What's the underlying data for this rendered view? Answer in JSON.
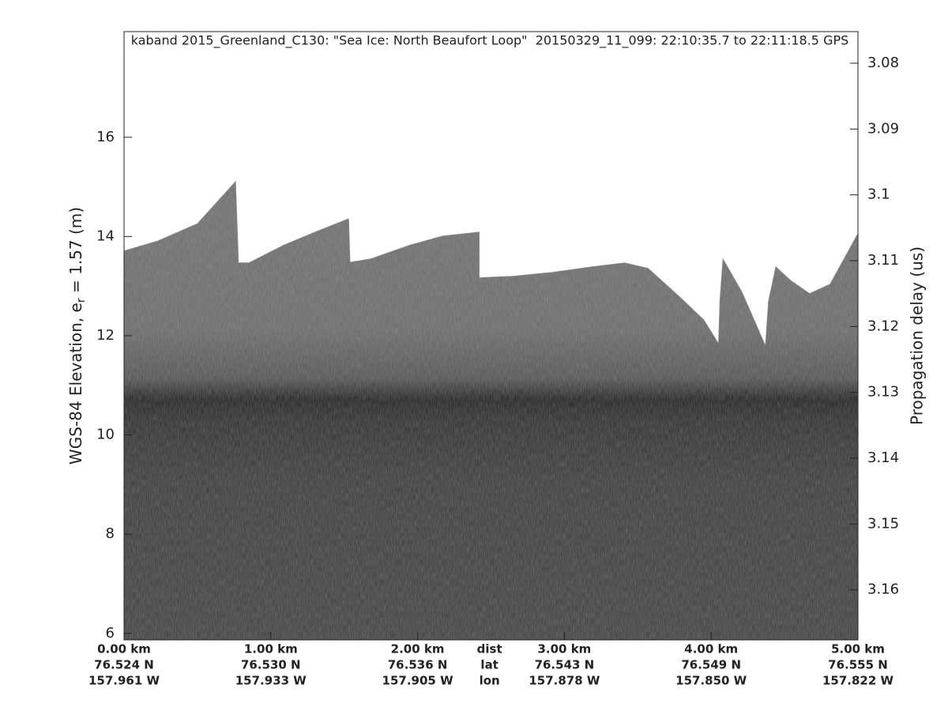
{
  "chart_data": {
    "type": "echogram",
    "title": "kaband 2015_Greenland_C130: \"Sea Ice: North Beaufort Loop\"  20150329_11_099: 22:10:35.7 to 22:11:18.5 GPS",
    "ylabel": {
      "text": "WGS-84 Elevation, e",
      "subscript": "r",
      "rest": " = 1.57 (m)"
    },
    "y2label": "Propagation delay (us)",
    "xlim": [
      0,
      5.0
    ],
    "xticks": [
      {
        "value": 0,
        "label": "0.00 km"
      },
      {
        "value": 1,
        "label": "1.00 km"
      },
      {
        "value": 2,
        "label": "2.00 km"
      },
      {
        "value": 3,
        "label": "3.00 km"
      },
      {
        "value": 4,
        "label": "4.00 km"
      },
      {
        "value": 5,
        "label": "5.00 km"
      }
    ],
    "xtick_lat": [
      "76.524 N",
      "76.530 N",
      "76.536 N",
      "76.543 N",
      "76.549 N",
      "76.555 N"
    ],
    "xtick_lon": [
      "157.961 W",
      "157.933 W",
      "157.905 W",
      "157.878 W",
      "157.850 W",
      "157.822 W"
    ],
    "row_labels": {
      "x": 2.49,
      "labels": [
        "dist",
        "lat",
        "lon"
      ]
    },
    "ylim": [
      5.87,
      18.13
    ],
    "yticks": [
      6,
      8,
      10,
      12,
      14,
      16
    ],
    "y2lim": [
      3.1676,
      3.0752
    ],
    "y2ticks": [
      3.08,
      3.09,
      3.1,
      3.11,
      3.12,
      3.13,
      3.14,
      3.15,
      3.16
    ],
    "surface": {
      "x": [
        0,
        0.23,
        0.5,
        0.76,
        0.77,
        0.78,
        0.85,
        1.09,
        1.31,
        1.53,
        1.54,
        1.68,
        1.95,
        2.17,
        2.42,
        2.42,
        2.65,
        2.92,
        3.19,
        3.41,
        3.57,
        3.78,
        3.95,
        4.05,
        4.06,
        4.08,
        4.21,
        4.37,
        4.39,
        4.44,
        4.54,
        4.67,
        4.81,
        5.0
      ],
      "y": [
        13.71,
        13.91,
        14.26,
        15.11,
        14.26,
        13.47,
        13.47,
        13.83,
        14.1,
        14.36,
        13.48,
        13.55,
        13.83,
        14.01,
        14.09,
        13.17,
        13.2,
        13.28,
        13.39,
        13.47,
        13.36,
        12.8,
        12.32,
        11.84,
        12.72,
        13.55,
        12.88,
        11.8,
        12.69,
        13.39,
        13.12,
        12.85,
        13.04,
        14.06
      ]
    }
  }
}
